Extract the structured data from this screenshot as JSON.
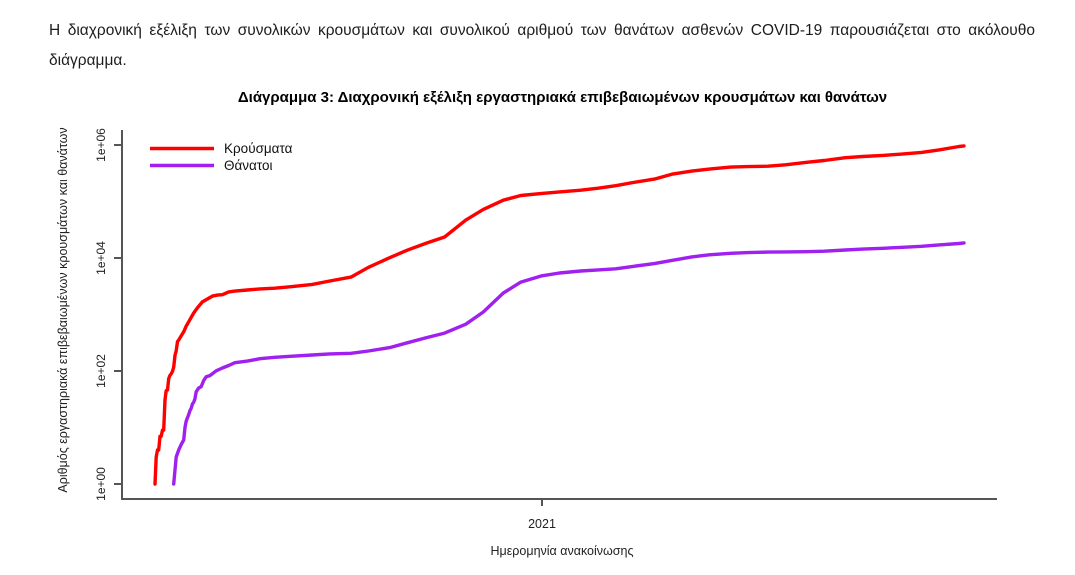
{
  "page": {
    "background": "#ffffff"
  },
  "intro": {
    "line1": "Η διαχρονική εξέλιξη των συνολικών κρουσμάτων και συνολικού αριθμού των θανάτων ασθενών COVID-19 παρουσιάζεται στο ακόλουθο",
    "line2": "διάγραμμα."
  },
  "chart_data": {
    "type": "line",
    "title": "Διάγραμμα 3: Διαχρονική εξέλιξη εργαστηριακά επιβεβαιωμένων κρουσμάτων και θανάτων",
    "xlabel": "Ημερομηνία ανακοίνωσης",
    "ylabel": "Αριθμός εργαστηριακά επιβεβαιωμένων κρουσμάτων και θανάτων",
    "y_scale": "log10",
    "grid": false,
    "legend_position": "top-left",
    "axis_color": "#555555",
    "text_color": "#222222",
    "y_ticks": [
      {
        "label": "1e+00",
        "value": 1
      },
      {
        "label": "1e+02",
        "value": 100
      },
      {
        "label": "1e+04",
        "value": 10000
      },
      {
        "label": "1e+06",
        "value": 1000000
      }
    ],
    "x_ticks": [
      {
        "label": "2021",
        "date": "2021-01-01"
      }
    ],
    "series": [
      {
        "id": "cases",
        "name": "Κρούσματα",
        "color": "#FF0000",
        "points": [
          [
            "2020-02-26",
            1
          ],
          [
            "2020-02-27",
            3
          ],
          [
            "2020-02-28",
            4
          ],
          [
            "2020-02-29",
            4
          ],
          [
            "2020-03-01",
            7
          ],
          [
            "2020-03-02",
            7
          ],
          [
            "2020-03-03",
            9
          ],
          [
            "2020-03-04",
            9
          ],
          [
            "2020-03-05",
            31
          ],
          [
            "2020-03-06",
            45
          ],
          [
            "2020-03-07",
            46
          ],
          [
            "2020-03-08",
            73
          ],
          [
            "2020-03-09",
            84
          ],
          [
            "2020-03-10",
            89
          ],
          [
            "2020-03-11",
            99
          ],
          [
            "2020-03-12",
            117
          ],
          [
            "2020-03-13",
            190
          ],
          [
            "2020-03-14",
            228
          ],
          [
            "2020-03-15",
            331
          ],
          [
            "2020-03-16",
            352
          ],
          [
            "2020-03-17",
            387
          ],
          [
            "2020-03-18",
            418
          ],
          [
            "2020-03-20",
            495
          ],
          [
            "2020-03-22",
            624
          ],
          [
            "2020-03-24",
            743
          ],
          [
            "2020-03-26",
            892
          ],
          [
            "2020-03-28",
            1061
          ],
          [
            "2020-03-31",
            1314
          ],
          [
            "2020-04-04",
            1673
          ],
          [
            "2020-04-08",
            1884
          ],
          [
            "2020-04-12",
            2114
          ],
          [
            "2020-04-16",
            2207
          ],
          [
            "2020-04-20",
            2245
          ],
          [
            "2020-04-25",
            2517
          ],
          [
            "2020-04-30",
            2591
          ],
          [
            "2020-05-10",
            2716
          ],
          [
            "2020-05-20",
            2840
          ],
          [
            "2020-06-01",
            2918
          ],
          [
            "2020-06-15",
            3121
          ],
          [
            "2020-07-01",
            3409
          ],
          [
            "2020-07-15",
            3910
          ],
          [
            "2020-08-01",
            4587
          ],
          [
            "2020-08-15",
            6858
          ],
          [
            "2020-09-01",
            10134
          ],
          [
            "2020-09-15",
            13730
          ],
          [
            "2020-10-01",
            18475
          ],
          [
            "2020-10-15",
            23495
          ],
          [
            "2020-11-01",
            46892
          ],
          [
            "2020-11-15",
            72510
          ],
          [
            "2020-12-01",
            105271
          ],
          [
            "2020-12-15",
            127557
          ],
          [
            "2021-01-01",
            138850
          ],
          [
            "2021-01-15",
            147860
          ],
          [
            "2021-02-01",
            158716
          ],
          [
            "2021-02-15",
            171642
          ],
          [
            "2021-03-01",
            190235
          ],
          [
            "2021-03-15",
            217092
          ],
          [
            "2021-04-01",
            249458
          ],
          [
            "2021-04-15",
            304184
          ],
          [
            "2021-05-01",
            344917
          ],
          [
            "2021-05-15",
            373881
          ],
          [
            "2021-06-01",
            405542
          ],
          [
            "2021-06-15",
            415280
          ],
          [
            "2021-07-01",
            421266
          ],
          [
            "2021-07-15",
            446491
          ],
          [
            "2021-08-01",
            494567
          ],
          [
            "2021-08-15",
            531840
          ],
          [
            "2021-09-01",
            594766
          ],
          [
            "2021-09-15",
            626313
          ],
          [
            "2021-10-01",
            655767
          ],
          [
            "2021-10-15",
            686359
          ],
          [
            "2021-11-01",
            739904
          ],
          [
            "2021-11-15",
            820314
          ],
          [
            "2021-12-01",
            938902
          ],
          [
            "2021-12-05",
            962335
          ]
        ]
      },
      {
        "id": "deaths",
        "name": "Θάνατοι",
        "color": "#A020F0",
        "points": [
          [
            "2020-03-12",
            1
          ],
          [
            "2020-03-14",
            3
          ],
          [
            "2020-03-16",
            4
          ],
          [
            "2020-03-18",
            5
          ],
          [
            "2020-03-20",
            6
          ],
          [
            "2020-03-21",
            10
          ],
          [
            "2020-03-22",
            13
          ],
          [
            "2020-03-23",
            15
          ],
          [
            "2020-03-24",
            17
          ],
          [
            "2020-03-25",
            20
          ],
          [
            "2020-03-26",
            22
          ],
          [
            "2020-03-27",
            26
          ],
          [
            "2020-03-28",
            28
          ],
          [
            "2020-03-29",
            32
          ],
          [
            "2020-03-30",
            43
          ],
          [
            "2020-04-01",
            50
          ],
          [
            "2020-04-03",
            53
          ],
          [
            "2020-04-05",
            68
          ],
          [
            "2020-04-07",
            79
          ],
          [
            "2020-04-10",
            83
          ],
          [
            "2020-04-15",
            101
          ],
          [
            "2020-04-20",
            113
          ],
          [
            "2020-04-25",
            125
          ],
          [
            "2020-04-30",
            140
          ],
          [
            "2020-05-10",
            150
          ],
          [
            "2020-05-20",
            165
          ],
          [
            "2020-06-01",
            175
          ],
          [
            "2020-06-15",
            183
          ],
          [
            "2020-07-01",
            192
          ],
          [
            "2020-07-15",
            201
          ],
          [
            "2020-08-01",
            206
          ],
          [
            "2020-08-15",
            226
          ],
          [
            "2020-09-01",
            260
          ],
          [
            "2020-09-15",
            315
          ],
          [
            "2020-10-01",
            391
          ],
          [
            "2020-10-15",
            469
          ],
          [
            "2020-11-01",
            673
          ],
          [
            "2020-11-15",
            1106
          ],
          [
            "2020-12-01",
            2406
          ],
          [
            "2020-12-15",
            3740
          ],
          [
            "2021-01-01",
            4838
          ],
          [
            "2021-01-15",
            5421
          ],
          [
            "2021-02-01",
            5878
          ],
          [
            "2021-02-15",
            6152
          ],
          [
            "2021-03-01",
            6439
          ],
          [
            "2021-03-15",
            7091
          ],
          [
            "2021-04-01",
            7945
          ],
          [
            "2021-04-15",
            9054
          ],
          [
            "2021-05-01",
            10453
          ],
          [
            "2021-05-15",
            11415
          ],
          [
            "2021-06-01",
            12122
          ],
          [
            "2021-06-15",
            12478
          ],
          [
            "2021-07-01",
            12710
          ],
          [
            "2021-07-15",
            12806
          ],
          [
            "2021-08-01",
            12927
          ],
          [
            "2021-08-15",
            13193
          ],
          [
            "2021-09-01",
            13877
          ],
          [
            "2021-09-15",
            14354
          ],
          [
            "2021-10-01",
            14828
          ],
          [
            "2021-10-15",
            15375
          ],
          [
            "2021-11-01",
            16109
          ],
          [
            "2021-11-15",
            17075
          ],
          [
            "2021-12-01",
            18067
          ],
          [
            "2021-12-05",
            18486
          ]
        ]
      }
    ]
  }
}
